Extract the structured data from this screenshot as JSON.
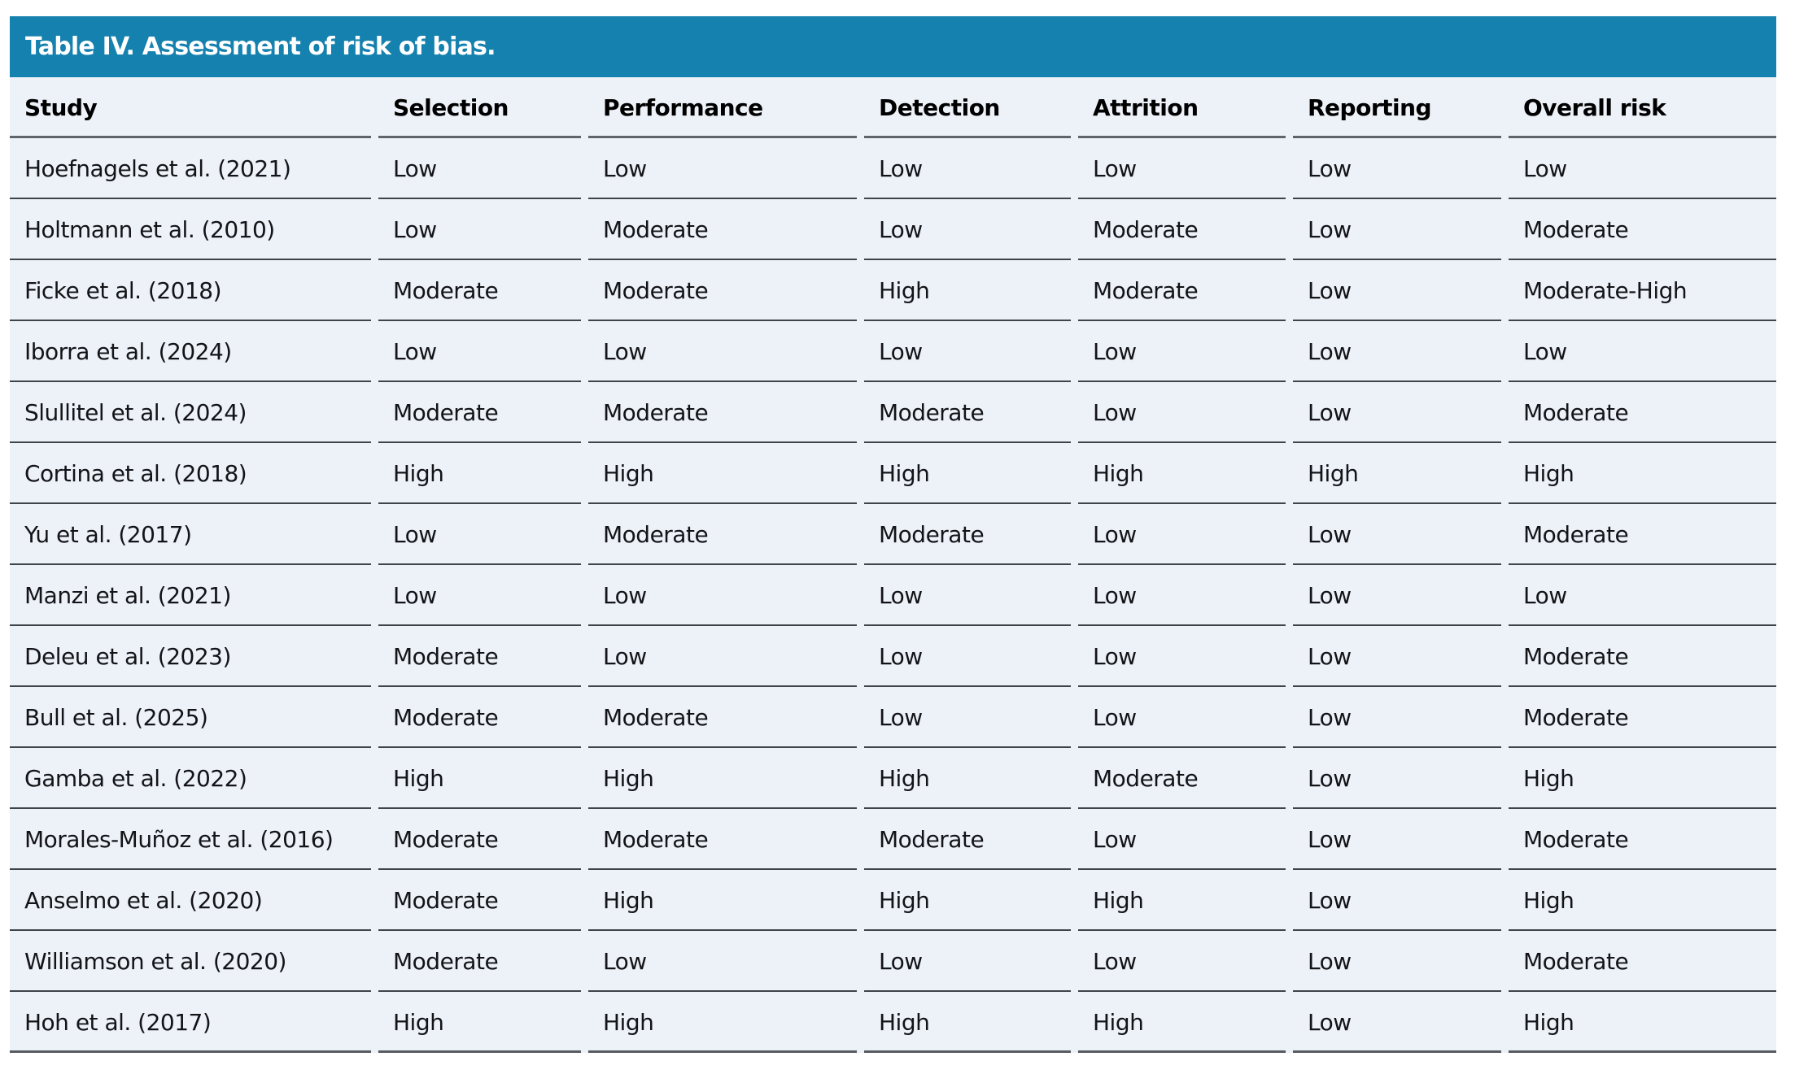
{
  "title": "Table IV. Assessment of risk of bias.",
  "colors": {
    "title_bar_bg": "#1581AE",
    "title_text": "#FFFFFF",
    "table_bg": "#EDF1F8",
    "header_rule": "#5F646B",
    "row_rule": "#3F444A",
    "body_text": "#121417"
  },
  "table": {
    "columns": [
      "Study",
      "Selection",
      "Performance",
      "Detection",
      "Attrition",
      "Reporting",
      "Overall risk"
    ],
    "rows": [
      [
        "Hoefnagels et al. (2021)",
        "Low",
        "Low",
        "Low",
        "Low",
        "Low",
        "Low"
      ],
      [
        "Holtmann et al. (2010)",
        "Low",
        "Moderate",
        "Low",
        "Moderate",
        "Low",
        "Moderate"
      ],
      [
        "Ficke et al. (2018)",
        "Moderate",
        "Moderate",
        "High",
        "Moderate",
        "Low",
        "Moderate-High"
      ],
      [
        "Iborra et al. (2024)",
        "Low",
        "Low",
        "Low",
        "Low",
        "Low",
        "Low"
      ],
      [
        "Slullitel et al. (2024)",
        "Moderate",
        "Moderate",
        "Moderate",
        "Low",
        "Low",
        "Moderate"
      ],
      [
        "Cortina et al. (2018)",
        "High",
        "High",
        "High",
        "High",
        "High",
        "High"
      ],
      [
        "Yu et al. (2017)",
        "Low",
        "Moderate",
        "Moderate",
        "Low",
        "Low",
        "Moderate"
      ],
      [
        "Manzi et al. (2021)",
        "Low",
        "Low",
        "Low",
        "Low",
        "Low",
        "Low"
      ],
      [
        "Deleu et al. (2023)",
        "Moderate",
        "Low",
        "Low",
        "Low",
        "Low",
        "Moderate"
      ],
      [
        "Bull et al. (2025)",
        "Moderate",
        "Moderate",
        "Low",
        "Low",
        "Low",
        "Moderate"
      ],
      [
        "Gamba et al. (2022)",
        "High",
        "High",
        "High",
        "Moderate",
        "Low",
        "High"
      ],
      [
        "Morales-Muñoz et al. (2016)",
        "Moderate",
        "Moderate",
        "Moderate",
        "Low",
        "Low",
        "Moderate"
      ],
      [
        "Anselmo et al. (2020)",
        "Moderate",
        "High",
        "High",
        "High",
        "Low",
        "High"
      ],
      [
        "Williamson et al. (2020)",
        "Moderate",
        "Low",
        "Low",
        "Low",
        "Low",
        "Moderate"
      ],
      [
        "Hoh et al. (2017)",
        "High",
        "High",
        "High",
        "High",
        "Low",
        "High"
      ]
    ]
  }
}
